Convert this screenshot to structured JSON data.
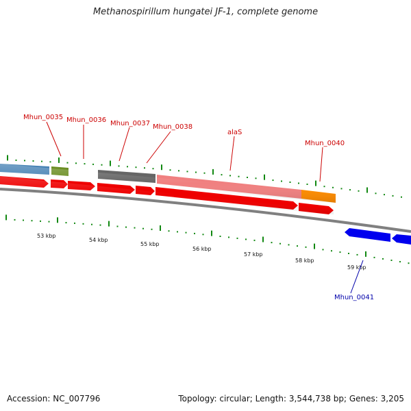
{
  "title": "Methanospirillum hungatei JF-1, complete genome",
  "footer": {
    "accession": "Accession: NC_007796",
    "topology": "Topology: circular; Length: 3,544,738 bp; Genes: 3,205"
  },
  "colors": {
    "forward_cds": "#ee0000",
    "reverse_cds": "#0000ee",
    "forward_label": "#cc0000",
    "reverse_label": "#0000aa",
    "backbone": "#888888",
    "ticks": "#118811"
  },
  "kbp_labels": [
    "53 kbp",
    "54 kbp",
    "55 kbp",
    "56 kbp",
    "57 kbp",
    "58 kbp",
    "59 kbp"
  ],
  "genes": [
    {
      "label": "Mhun_0035",
      "strand": "+"
    },
    {
      "label": "Mhun_0036",
      "strand": "+"
    },
    {
      "label": "Mhun_0037",
      "strand": "+"
    },
    {
      "label": "Mhun_0038",
      "strand": "+"
    },
    {
      "label": "alaS",
      "strand": "+"
    },
    {
      "label": "Mhun_0040",
      "strand": "+"
    },
    {
      "label": "Mhun_0041",
      "strand": "-"
    }
  ],
  "feature_colors": {
    "steel": "#4682b4",
    "olive": "#6b8e23",
    "gray": "#666666",
    "pink": "#f08080",
    "orange": "#ff8c00"
  }
}
